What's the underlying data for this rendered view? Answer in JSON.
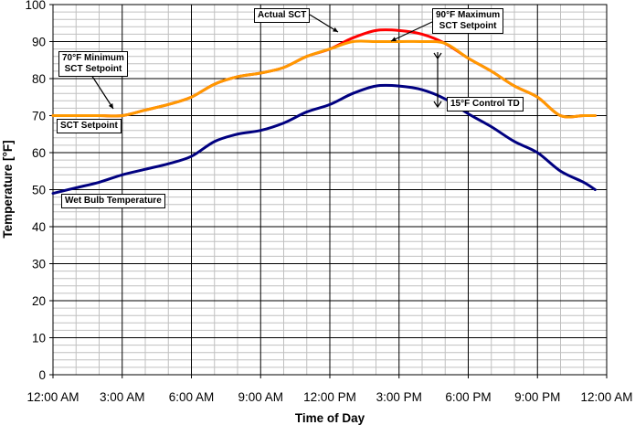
{
  "chart_data": {
    "type": "line",
    "title": "",
    "xlabel": "Time of Day",
    "ylabel": "Temperature [°F]",
    "ylim": [
      0,
      100
    ],
    "xlim_hours": [
      0,
      24
    ],
    "grid": true,
    "y_ticks": [
      0,
      10,
      20,
      30,
      40,
      50,
      60,
      70,
      80,
      90,
      100
    ],
    "x_tick_labels": [
      "12:00 AM",
      "3:00 AM",
      "6:00 AM",
      "9:00 AM",
      "12:00 PM",
      "3:00 PM",
      "6:00 PM",
      "9:00 PM",
      "12:00 AM"
    ],
    "x_hours": [
      0,
      1,
      2,
      3,
      4,
      5,
      6,
      7,
      8,
      9,
      10,
      11,
      12,
      13,
      14,
      15,
      16,
      17,
      18,
      19,
      20,
      21,
      22,
      23,
      23.5
    ],
    "series": [
      {
        "name": "Wet Bulb Temperature",
        "color": "#000080",
        "values": [
          49,
          50.5,
          52,
          54,
          55.5,
          57,
          59,
          63,
          65,
          66,
          68,
          71,
          73,
          76,
          78,
          78,
          77,
          74.5,
          70.5,
          67,
          63,
          60,
          55,
          52,
          50
        ]
      },
      {
        "name": "Actual SCT",
        "color": "#ff0000",
        "values": [
          70,
          70,
          70,
          70,
          71.5,
          73,
          75,
          78.5,
          80.5,
          81.5,
          83,
          86,
          88,
          91,
          93,
          93,
          92,
          89.5,
          85.5,
          82,
          78,
          75,
          70,
          70,
          70
        ]
      },
      {
        "name": "SCT Setpoint",
        "color": "#ff9900",
        "values": [
          70,
          70,
          70,
          70,
          71.5,
          73,
          75,
          78.5,
          80.5,
          81.5,
          83,
          86,
          88,
          90,
          90,
          90,
          90,
          89.5,
          85.5,
          82,
          78,
          75,
          70,
          70,
          70
        ]
      }
    ],
    "annotations": [
      {
        "text": "Actual SCT",
        "points_to": "Actual SCT curve near 1:00 PM"
      },
      {
        "text": "90°F Maximum SCT Setpoint",
        "points_to": "SCT Setpoint plateau at 90°F"
      },
      {
        "text": "70°F Minimum SCT Setpoint",
        "points_to": "SCT Setpoint at 70°F near 3:00 AM"
      },
      {
        "text": "SCT Setpoint",
        "points_to": "orange line"
      },
      {
        "text": "15°F Control TD",
        "points_to": "vertical gap between SCT setpoint and wet bulb at ~5:00 PM"
      },
      {
        "text": "Wet Bulb Temperature",
        "points_to": "blue line"
      }
    ],
    "legend_position": "none (inline annotations)"
  },
  "labels": {
    "xlabel": "Time of Day",
    "ylabel": "Temperature [°F]",
    "ann_actual_sct": "Actual SCT",
    "ann_max_1": "90°F Maximum",
    "ann_max_2": "SCT Setpoint",
    "ann_min_1": "70°F Minimum",
    "ann_min_2": "SCT Setpoint",
    "ann_sct_setpoint": "SCT Setpoint",
    "ann_control_td": "15°F Control TD",
    "ann_wet_bulb": "Wet Bulb Temperature"
  }
}
